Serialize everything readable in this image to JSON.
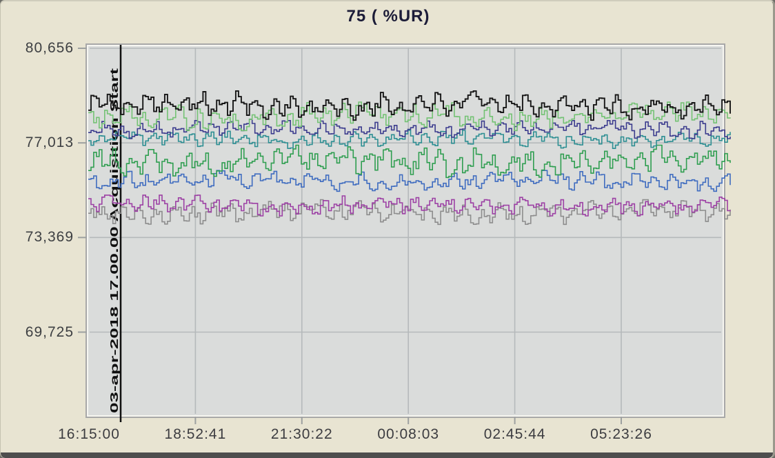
{
  "chart_data": {
    "type": "line",
    "title": "75 ( %UR)",
    "unit": "%UR",
    "grid": true,
    "legend": null,
    "x_axis": {
      "tick_labels": [
        "16:15:00",
        "18:52:41",
        "21:30:22",
        "00:08:03",
        "02:45:44",
        "05:23:26"
      ],
      "start": "16:15:00",
      "tick_interval_hms": "02:37:41"
    },
    "y_axis": {
      "tick_labels": [
        "80,656",
        "77,013",
        "73,369",
        "69,725"
      ],
      "tick_values": [
        80.656,
        77.013,
        73.369,
        69.725
      ],
      "decimal_separator": "comma"
    },
    "event_marker": {
      "label": "03-apr-2018 17.00.00  Acquisition Start",
      "date_part": "03-apr-2018 17.00.00",
      "name_part": "Acquisition Start"
    },
    "series": [
      {
        "name": "trace-black",
        "color": "#161616",
        "approx_mean": 78.45,
        "approx_amplitude": 0.45
      },
      {
        "name": "trace-light-green",
        "color": "#74c274",
        "approx_mean": 78.05,
        "approx_amplitude": 0.45
      },
      {
        "name": "trace-indigo",
        "color": "#3c3c8e",
        "approx_mean": 77.55,
        "approx_amplitude": 0.3
      },
      {
        "name": "trace-teal",
        "color": "#2e8f93",
        "approx_mean": 77.15,
        "approx_amplitude": 0.28
      },
      {
        "name": "trace-green",
        "color": "#2f9e50",
        "approx_mean": 76.3,
        "approx_amplitude": 0.5
      },
      {
        "name": "trace-blue",
        "color": "#3f6cc0",
        "approx_mean": 75.55,
        "approx_amplitude": 0.32
      },
      {
        "name": "trace-purple",
        "color": "#9c40a4",
        "approx_mean": 74.6,
        "approx_amplitude": 0.32
      },
      {
        "name": "trace-gray",
        "color": "#8d8d8d",
        "approx_mean": 74.35,
        "approx_amplitude": 0.38
      }
    ]
  },
  "colors": {
    "canvas_bg": "#e8e4d2",
    "plot_bg": "#dadcdb",
    "gridline": "#b5b9bb",
    "tick": "#9da0a0",
    "axis_text": "#3d3f42",
    "title_text": "#1c1c38",
    "event_line": "#101010"
  }
}
